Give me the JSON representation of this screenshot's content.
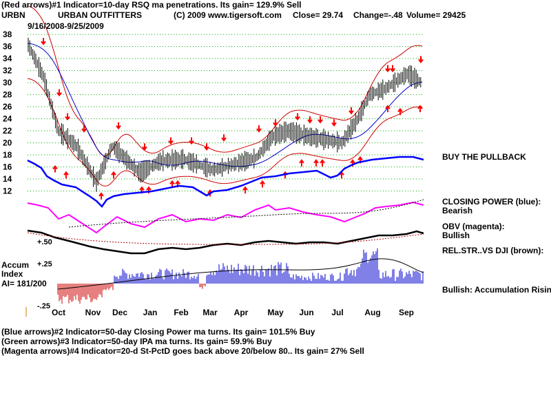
{
  "header": {
    "line1": "(Red arrows)#1 Indicator=10-day RSQ ma penetrations. Its gain= 129.9% Sell",
    "ticker": "URBN",
    "company": "URBAN OUTFITTERS",
    "copyright": "(C) 2009 www.tigersoft.com",
    "close": "Close=  29.74",
    "change": "Change=-.48",
    "volume": "Volume= 29425",
    "date_range": "9/16/2008-9/25/2009"
  },
  "right_labels": {
    "buy_pullback": "BUY THE PULLBACK",
    "closing_power": "CLOSING POWER (blue):",
    "closing_power_value": "Bearish",
    "obv": "OBV (magenta):",
    "obv_value": "Bullish",
    "rel_str": "REL.STR..VS DJI (brown):",
    "accum_status": "Bullish: Accumulation Rising"
  },
  "accum": {
    "label1": "Accum",
    "label2": "Index",
    "ai": "AI= 181/200",
    "plus50": "+.50",
    "plus25": "+.25",
    "minus25": "-.25"
  },
  "footer": {
    "line1": "(Blue arrows)#2 Indicator=50-day Closing Power ma turns. Its gain= 101.5% Buy",
    "line2": "(Green arrows)#3 Indicator=50-day IPA ma turns. Its gain= 59.9% Buy",
    "line3": "(Magenta arrows)#4 Indicator=20-d St-PctD goes back above 20/below 80.. Its gain= 27% Sell"
  },
  "colors": {
    "price": "#000000",
    "bands": "#cc0000",
    "ma": "#0000cc",
    "closing_power": "#0000ff",
    "obv": "#ff00ff",
    "rel_str": "#000000",
    "accum_pos": "#0000cc",
    "accum_neg": "#cc0000",
    "arrows": "#ff0000",
    "grid": "#00aa00"
  },
  "chart_data": {
    "type": "line",
    "title": "URBN URBAN OUTFITTERS 9/16/2008-9/25/2009",
    "ylim": [
      11,
      38
    ],
    "y_ticks": [
      "38",
      "36",
      "34",
      "32",
      "30",
      "28",
      "26",
      "24",
      "22",
      "20",
      "18",
      "16",
      "14",
      "12"
    ],
    "x_ticks": [
      "Oct",
      "Nov",
      "Dec",
      "Jan",
      "Feb",
      "Mar",
      "Apr",
      "May",
      "Jun",
      "Jul",
      "Aug",
      "Sep"
    ],
    "price": {
      "dates": [
        "9/16/2008",
        "10/1/2008",
        "10/15/2008",
        "11/1/2008",
        "11/20/2008",
        "12/5/2008",
        "12/31/2008",
        "1/20/2009",
        "2/10/2009",
        "3/10/2009",
        "3/31/2009",
        "4/20/2009",
        "5/5/2009",
        "5/20/2009",
        "6/10/2009",
        "6/25/2009",
        "7/10/2009",
        "7/25/2009",
        "8/5/2009",
        "8/20/2009",
        "9/10/2009",
        "9/25/2009"
      ],
      "values": [
        36.5,
        31,
        22,
        19.5,
        13.5,
        19.5,
        15,
        17,
        17.3,
        15.5,
        16.5,
        17.5,
        21,
        22,
        21,
        20.5,
        20,
        24,
        28,
        29,
        31.5,
        29.74
      ]
    },
    "series": [
      {
        "name": "Closing Power (blue)",
        "status": "Bearish"
      },
      {
        "name": "OBV (magenta)",
        "status": "Bullish"
      },
      {
        "name": "Rel.Str. vs DJI (brown)"
      },
      {
        "name": "Accumulation Index",
        "status": "Accumulation Rising",
        "value": "181/200"
      }
    ]
  }
}
